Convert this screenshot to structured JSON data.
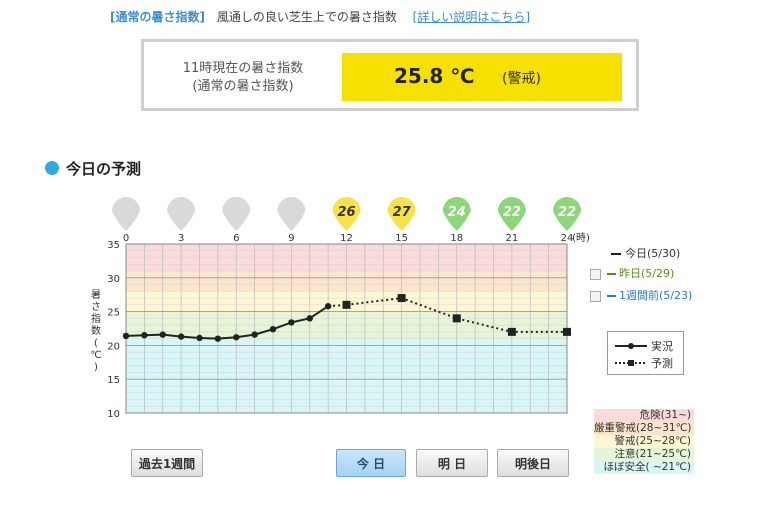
{
  "header": {
    "title": "[通常の暑さ指数]",
    "description": "風通しの良い芝生上での暑さ指数",
    "link": "[詳しい説明はこちら]"
  },
  "current": {
    "label_line1": "11時現在の暑さ指数",
    "label_line2": "(通常の暑さ指数)",
    "value": "25.8 ℃",
    "level": "(警戒)",
    "highlight_color": "#f6e000"
  },
  "section": {
    "title": "今日の予測"
  },
  "bubbles": [
    {
      "hour": "0",
      "value": "",
      "color": "#d9d9d9"
    },
    {
      "hour": "3",
      "value": "",
      "color": "#d9d9d9"
    },
    {
      "hour": "6",
      "value": "",
      "color": "#d9d9d9"
    },
    {
      "hour": "9",
      "value": "",
      "color": "#d9d9d9"
    },
    {
      "hour": "12",
      "value": "26",
      "color": "#f6e34a"
    },
    {
      "hour": "15",
      "value": "27",
      "color": "#f6e34a"
    },
    {
      "hour": "18",
      "value": "24",
      "color": "#8ed67a"
    },
    {
      "hour": "21",
      "value": "22",
      "color": "#8ed67a"
    },
    {
      "hour": "24",
      "value": "22",
      "color": "#8ed67a"
    }
  ],
  "hour_unit": "(時)",
  "chart_data": {
    "type": "line",
    "ylabel": "暑さ指数(℃)",
    "xlim": [
      0,
      24
    ],
    "ylim": [
      10,
      35
    ],
    "yticks": [
      10,
      15,
      20,
      25,
      30,
      35
    ],
    "xticks": [
      0,
      3,
      6,
      9,
      12,
      15,
      18,
      21,
      24
    ],
    "bands": [
      {
        "from": 31,
        "to": 35,
        "color": "#fadada"
      },
      {
        "from": 28,
        "to": 31,
        "color": "#fde4cc"
      },
      {
        "from": 25,
        "to": 28,
        "color": "#fdf8d3"
      },
      {
        "from": 21,
        "to": 25,
        "color": "#e6f5d7"
      },
      {
        "from": 10,
        "to": 21,
        "color": "#d8f5f8"
      }
    ],
    "series": [
      {
        "name": "実況",
        "style": "solid",
        "marker": "circle",
        "x": [
          0,
          1,
          2,
          3,
          4,
          5,
          6,
          7,
          8,
          9,
          10,
          11
        ],
        "values": [
          21.4,
          21.5,
          21.6,
          21.3,
          21.1,
          21.0,
          21.2,
          21.6,
          22.4,
          23.4,
          24.0,
          25.8
        ]
      },
      {
        "name": "予測",
        "style": "dotted",
        "marker": "square",
        "x": [
          12,
          15,
          18,
          21,
          24
        ],
        "values": [
          26.0,
          27.0,
          24.0,
          22.0,
          22.0
        ]
      }
    ]
  },
  "legend_days": [
    {
      "label": "今日(5/30)",
      "color": "#222222"
    },
    {
      "label": "昨日(5/29)",
      "color": "#5a8a1f"
    },
    {
      "label": "1週間前(5/23)",
      "color": "#2a7ad1"
    }
  ],
  "legend_lines": {
    "actual": "実況",
    "forecast": "予測"
  },
  "levels": [
    {
      "label": "危険(31~)",
      "color": "#fadada"
    },
    {
      "label": "厳重警戒(28~31℃)",
      "color": "#fde4cc"
    },
    {
      "label": "警戒(25~28℃)",
      "color": "#fdf8d3"
    },
    {
      "label": "注意(21~25℃)",
      "color": "#e6f5d7"
    },
    {
      "label": "ほぼ安全( ~21℃)",
      "color": "#d8f5f8"
    }
  ],
  "buttons": {
    "past_week": "過去1週間",
    "today": "今 日",
    "tomorrow": "明 日",
    "day_after": "明後日"
  }
}
